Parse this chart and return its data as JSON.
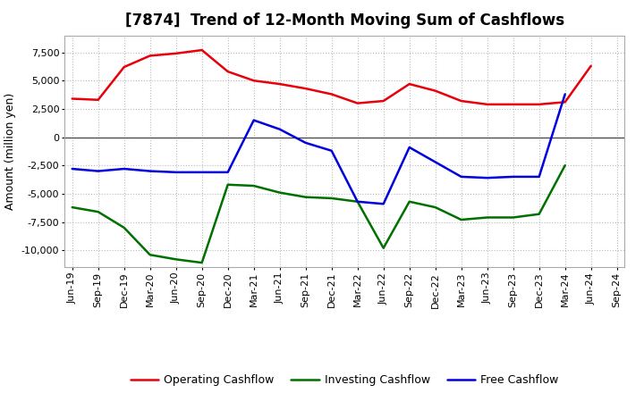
{
  "title": "[7874]  Trend of 12-Month Moving Sum of Cashflows",
  "ylabel": "Amount (million yen)",
  "x_labels": [
    "Jun-19",
    "Sep-19",
    "Dec-19",
    "Mar-20",
    "Jun-20",
    "Sep-20",
    "Dec-20",
    "Mar-21",
    "Jun-21",
    "Sep-21",
    "Dec-21",
    "Mar-22",
    "Jun-22",
    "Sep-22",
    "Dec-22",
    "Mar-23",
    "Jun-23",
    "Sep-23",
    "Dec-23",
    "Mar-24",
    "Jun-24",
    "Sep-24"
  ],
  "operating": [
    3400,
    3300,
    6200,
    7200,
    7400,
    7700,
    5800,
    5000,
    4700,
    4300,
    3800,
    3000,
    3200,
    4700,
    4100,
    3200,
    2900,
    2900,
    2900,
    3100,
    6300,
    null
  ],
  "investing": [
    -6200,
    -6600,
    -8000,
    -10400,
    -10800,
    -11100,
    -4200,
    -4300,
    -4900,
    -5300,
    -5400,
    -5700,
    -9800,
    -5700,
    -6200,
    -7300,
    -7100,
    -7100,
    -6800,
    -2500,
    null,
    null
  ],
  "free": [
    -2800,
    -3000,
    -2800,
    -3000,
    -3100,
    -3100,
    -3100,
    1500,
    700,
    -500,
    -1200,
    -5700,
    -5900,
    -900,
    -2200,
    -3500,
    -3600,
    -3500,
    -3500,
    3800,
    null,
    null
  ],
  "operating_color": "#e8000a",
  "investing_color": "#007000",
  "free_color": "#0000dd",
  "ylim": [
    -11500,
    9000
  ],
  "yticks": [
    -10000,
    -7500,
    -5000,
    -2500,
    0,
    2500,
    5000,
    7500
  ],
  "background_color": "#ffffff",
  "plot_bg_color": "#ffffff",
  "grid_color": "#bbbbbb",
  "title_fontsize": 12,
  "axis_fontsize": 8,
  "ylabel_fontsize": 9,
  "legend_fontsize": 9
}
